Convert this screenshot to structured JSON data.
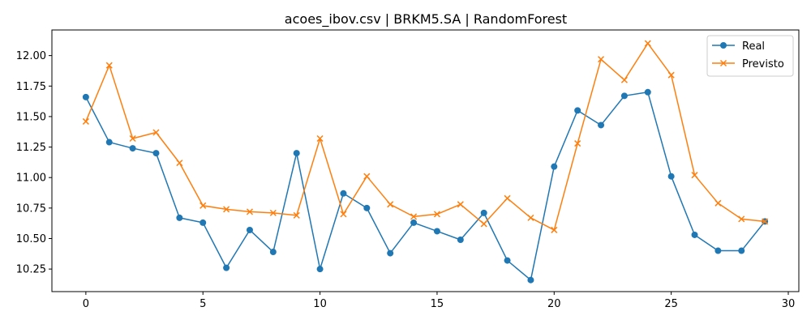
{
  "chart_data": {
    "type": "line",
    "title": "acoes_ibov.csv | BRKM5.SA | RandomForest",
    "xlabel": "",
    "ylabel": "",
    "xlim": [
      -1.45,
      30.45
    ],
    "ylim": [
      10.065,
      12.21
    ],
    "xticks": [
      0,
      5,
      10,
      15,
      20,
      25,
      30
    ],
    "yticks": [
      10.25,
      10.5,
      10.75,
      11.0,
      11.25,
      11.5,
      11.75,
      12.0
    ],
    "ytick_labels": [
      "10.25",
      "10.50",
      "10.75",
      "11.00",
      "11.25",
      "11.50",
      "11.75",
      "12.00"
    ],
    "grid": false,
    "legend_position": "top-right",
    "x": [
      0,
      1,
      2,
      3,
      4,
      5,
      6,
      7,
      8,
      9,
      10,
      11,
      12,
      13,
      14,
      15,
      16,
      17,
      18,
      19,
      20,
      21,
      22,
      23,
      24,
      25,
      26,
      27,
      28,
      29
    ],
    "series": [
      {
        "name": "Real",
        "color": "#1f77b4",
        "marker": "circle",
        "values": [
          11.66,
          11.29,
          11.24,
          11.2,
          10.67,
          10.63,
          10.26,
          10.57,
          10.39,
          11.2,
          10.25,
          10.87,
          10.75,
          10.38,
          10.63,
          10.56,
          10.49,
          10.71,
          10.32,
          10.16,
          11.09,
          11.55,
          11.43,
          11.67,
          11.7,
          11.01,
          10.53,
          10.4,
          10.4,
          10.64
        ]
      },
      {
        "name": "Previsto",
        "color": "#ff7f0e",
        "marker": "x",
        "values": [
          11.46,
          11.92,
          11.32,
          11.37,
          11.12,
          10.77,
          10.74,
          10.72,
          10.71,
          10.69,
          11.32,
          10.7,
          11.01,
          10.78,
          10.68,
          10.7,
          10.78,
          10.62,
          10.83,
          10.67,
          10.57,
          11.28,
          11.97,
          11.8,
          12.1,
          11.84,
          11.02,
          10.79,
          10.66,
          10.64
        ]
      }
    ]
  }
}
